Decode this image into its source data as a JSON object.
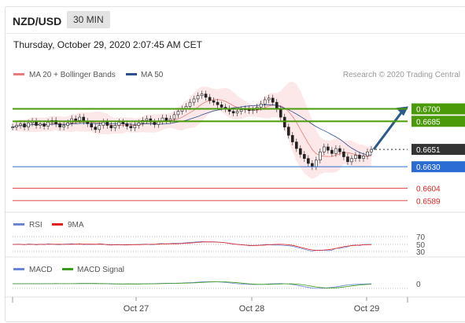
{
  "header": {
    "pair": "NZD/USD",
    "timeframe": "30 MIN"
  },
  "datetime": "Thursday, October 29, 2020 2:07:45 AM CET",
  "legend": {
    "ma20": "MA 20 + Bollinger Bands",
    "ma50": "MA 50",
    "credit": "Research © 2020 Trading Central",
    "rsi": "RSI",
    "rsi9": "9MA",
    "macd": "MACD",
    "macd_signal": "MACD Signal"
  },
  "colors": {
    "resistance": "#4a9a0a",
    "support": "#2b6cd4",
    "support2": "#e04a4a",
    "current": "#333333",
    "ma20": "#e87a7a",
    "ma50": "#2c4f8f",
    "arrow": "#2a5a8c"
  },
  "chart_data": [
    {
      "type": "candlestick",
      "title": "NZD/USD 30 MIN",
      "x_ticks": [
        "Oct 27",
        "Oct 28",
        "Oct 29"
      ],
      "ylim": [
        0.6575,
        0.673
      ],
      "levels": [
        {
          "label": "0.6700",
          "value": 0.67,
          "kind": "resistance"
        },
        {
          "label": "0.6685",
          "value": 0.6685,
          "kind": "resistance"
        },
        {
          "label": "0.6651",
          "value": 0.6651,
          "kind": "current"
        },
        {
          "label": "0.6630",
          "value": 0.663,
          "kind": "support"
        },
        {
          "label": "0.6604",
          "value": 0.6604,
          "kind": "support2"
        },
        {
          "label": "0.6589",
          "value": 0.6589,
          "kind": "support2"
        }
      ],
      "close_path": [
        0.6678,
        0.668,
        0.6682,
        0.6678,
        0.6683,
        0.6685,
        0.668,
        0.6682,
        0.6679,
        0.6684,
        0.6686,
        0.6682,
        0.6678,
        0.668,
        0.6683,
        0.6688,
        0.6686,
        0.669,
        0.6685,
        0.6682,
        0.6678,
        0.6675,
        0.668,
        0.6684,
        0.668,
        0.6677,
        0.668,
        0.6684,
        0.6682,
        0.6679,
        0.6677,
        0.668,
        0.6683,
        0.6686,
        0.6688,
        0.6684,
        0.6681,
        0.6685,
        0.6689,
        0.6686,
        0.6688,
        0.6693,
        0.6697,
        0.67,
        0.6703,
        0.6708,
        0.6712,
        0.6716,
        0.6718,
        0.6714,
        0.671,
        0.6708,
        0.6705,
        0.6702,
        0.67,
        0.6697,
        0.6695,
        0.6697,
        0.6699,
        0.67,
        0.6698,
        0.6699,
        0.6702,
        0.6706,
        0.6711,
        0.6713,
        0.6708,
        0.67,
        0.669,
        0.6678,
        0.6668,
        0.666,
        0.6652,
        0.6645,
        0.664,
        0.6634,
        0.663,
        0.6638,
        0.6648,
        0.6654,
        0.665,
        0.6646,
        0.6652,
        0.6648,
        0.6642,
        0.6636,
        0.664,
        0.6644,
        0.664,
        0.6643,
        0.6648,
        0.6651
      ]
    },
    {
      "type": "line",
      "title": "RSI",
      "y_ticks": [
        "70",
        "50",
        "30"
      ],
      "series": [
        {
          "name": "RSI"
        },
        {
          "name": "9MA"
        }
      ]
    },
    {
      "type": "line",
      "title": "MACD",
      "y_ticks": [
        "0"
      ],
      "series": [
        {
          "name": "MACD"
        },
        {
          "name": "MACD Signal"
        }
      ]
    }
  ]
}
